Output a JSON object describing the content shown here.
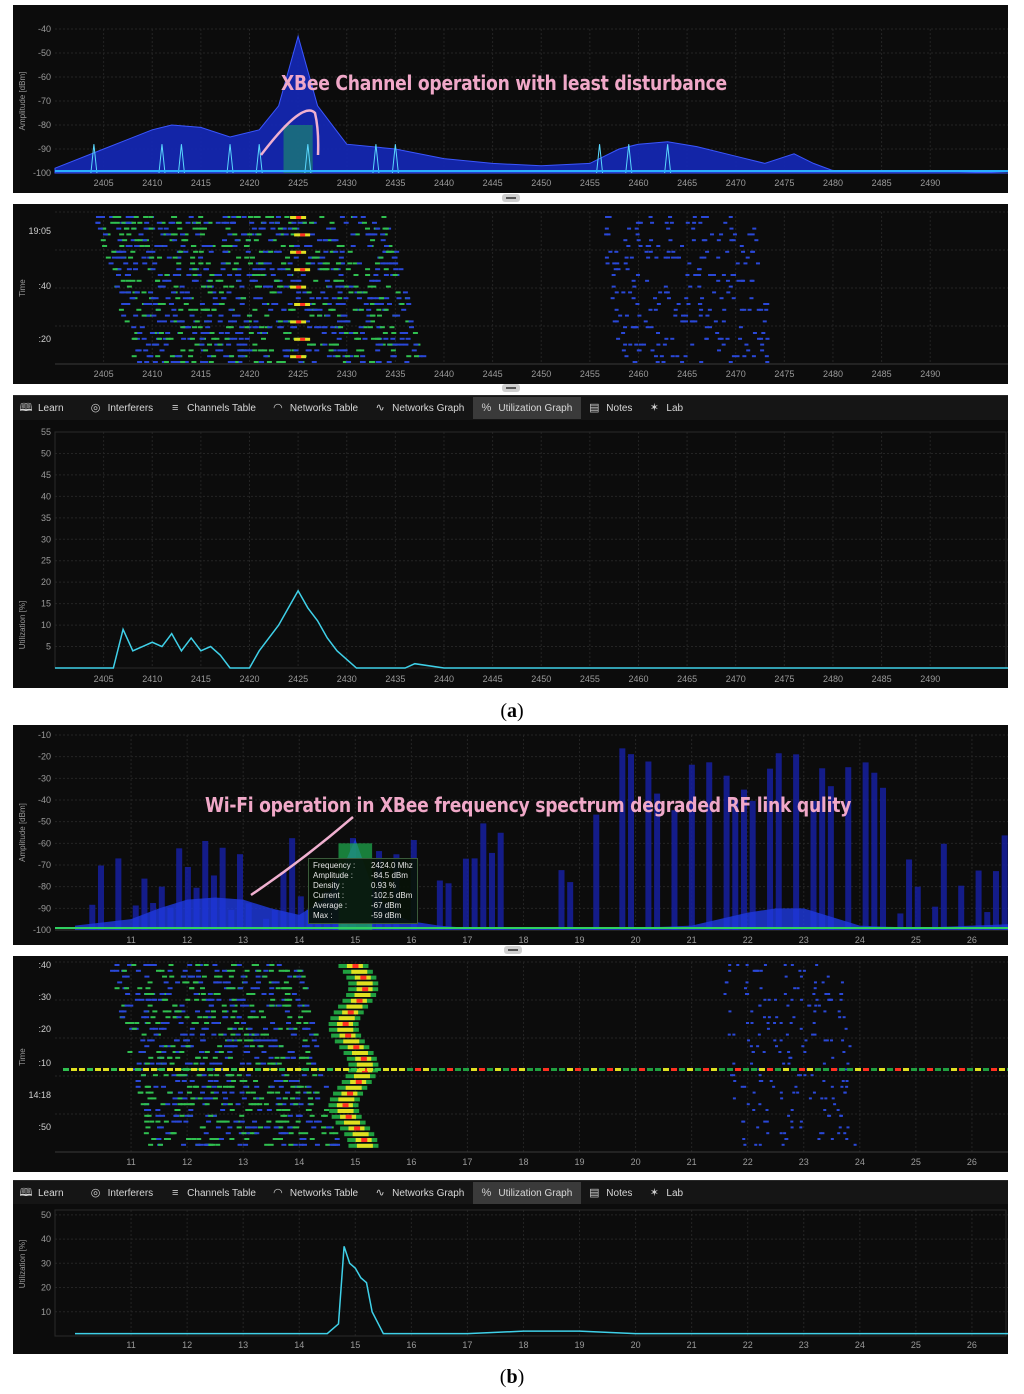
{
  "panel_a": {
    "annotation": "XBee Channel operation with least disturbance",
    "spectrum": {
      "ylabel": "Amplitude [dBm]",
      "yticks": [
        "-40",
        "-50",
        "-60",
        "-70",
        "-80",
        "-90",
        "-100"
      ],
      "xticks": [
        "2405",
        "2410",
        "2415",
        "2420",
        "2425",
        "2430",
        "2435",
        "2440",
        "2445",
        "2450",
        "2455",
        "2460",
        "2465",
        "2470",
        "2475",
        "2480",
        "2485",
        "2490"
      ]
    },
    "waterfall": {
      "ylabel": "Time",
      "yticks": [
        "19:05",
        ":40",
        ":20"
      ],
      "xticks": [
        "2405",
        "2410",
        "2415",
        "2420",
        "2425",
        "2430",
        "2435",
        "2440",
        "2445",
        "2450",
        "2455",
        "2460",
        "2465",
        "2470",
        "2475",
        "2480",
        "2485",
        "2490"
      ]
    },
    "toolbar": [
      "Learn",
      "Interferers",
      "Channels Table",
      "Networks Table",
      "Networks Graph",
      "Utilization Graph",
      "Notes",
      "Lab"
    ],
    "utilization": {
      "ylabel": "Utilization [%]",
      "yticks": [
        "55",
        "50",
        "45",
        "40",
        "35",
        "30",
        "25",
        "20",
        "15",
        "10",
        "5"
      ],
      "xticks": [
        "2405",
        "2410",
        "2415",
        "2420",
        "2425",
        "2430",
        "2435",
        "2440",
        "2445",
        "2450",
        "2455",
        "2460",
        "2465",
        "2470",
        "2475",
        "2480",
        "2485",
        "2490"
      ]
    },
    "caption_letter": "a"
  },
  "panel_b": {
    "annotation": "Wi-Fi operation in XBee frequency spectrum degraded RF link qulity",
    "spectrum": {
      "ylabel": "Amplitude [dBm]",
      "yticks": [
        "-10",
        "-20",
        "-30",
        "-40",
        "-50",
        "-60",
        "-70",
        "-80",
        "-90",
        "-100"
      ],
      "xticks": [
        "11",
        "12",
        "13",
        "14",
        "15",
        "16",
        "17",
        "18",
        "19",
        "20",
        "21",
        "22",
        "23",
        "24",
        "25",
        "26"
      ]
    },
    "readout": {
      "rows": [
        {
          "k": "Frequency :",
          "v": "2424.0 Mhz"
        },
        {
          "k": "Amplitude :",
          "v": "-84.5 dBm"
        },
        {
          "k": "Density :",
          "v": "0.93 %"
        },
        {
          "k": "Current :",
          "v": "-102.5 dBm"
        },
        {
          "k": "Average :",
          "v": "-67 dBm"
        },
        {
          "k": "Max :",
          "v": "-59 dBm"
        }
      ]
    },
    "waterfall": {
      "ylabel": "Time",
      "yticks": [
        ":40",
        ":30",
        ":20",
        ":10",
        "14:18",
        ":50"
      ],
      "xticks": [
        "11",
        "12",
        "13",
        "14",
        "15",
        "16",
        "17",
        "18",
        "19",
        "20",
        "21",
        "22",
        "23",
        "24",
        "25",
        "26"
      ]
    },
    "toolbar": [
      "Learn",
      "Interferers",
      "Channels Table",
      "Networks Table",
      "Networks Graph",
      "Utilization Graph",
      "Notes",
      "Lab"
    ],
    "utilization": {
      "ylabel": "Utilization [%]",
      "yticks": [
        "50",
        "40",
        "30",
        "20",
        "10"
      ],
      "xticks": [
        "11",
        "12",
        "13",
        "14",
        "15",
        "16",
        "17",
        "18",
        "19",
        "20",
        "21",
        "22",
        "23",
        "24",
        "25",
        "26"
      ]
    },
    "caption_letter": "b"
  },
  "toolbar_icons": [
    "book-icon",
    "interferers-icon",
    "channels-table-icon",
    "wifi-icon",
    "graph-icon",
    "percent-icon",
    "notes-icon",
    "lab-icon"
  ],
  "colors": {
    "trace": "#3fd0e8",
    "spectrum_blue": "#1a2ad0",
    "background": "#0c0c0c",
    "annotation": "#f0a8c8"
  },
  "chart_data": [
    {
      "type": "area",
      "title": "",
      "xlabel": "",
      "ylabel": "Amplitude [dBm]",
      "xlim": [
        2400,
        2498
      ],
      "ylim": [
        -100,
        -35
      ],
      "series": [
        {
          "x": [
            2400,
            2405,
            2410,
            2412,
            2415,
            2418,
            2421,
            2423,
            2425,
            2427,
            2430,
            2435,
            2440,
            2445,
            2450,
            2455,
            2458,
            2460,
            2463,
            2466,
            2470,
            2473,
            2476,
            2478,
            2480,
            2490,
            2498
          ],
          "values": [
            -98,
            -90,
            -82,
            -80,
            -81,
            -85,
            -82,
            -72,
            -43,
            -72,
            -88,
            -90,
            -94,
            -96,
            -97,
            -96,
            -90,
            -88,
            -87,
            -89,
            -93,
            -96,
            -92,
            -96,
            -99,
            -99,
            -100
          ]
        }
      ]
    },
    {
      "type": "line",
      "title": "",
      "xlabel": "",
      "ylabel": "Utilization [%]",
      "xlim": [
        2400,
        2498
      ],
      "ylim": [
        0,
        56
      ],
      "series": [
        {
          "x": [
            2400,
            2406,
            2407,
            2408,
            2409,
            2410,
            2411,
            2412,
            2413,
            2414,
            2415,
            2416,
            2417,
            2418,
            2419,
            2420,
            2421,
            2422,
            2423,
            2424,
            2425,
            2426,
            2427,
            2428,
            2429,
            2430,
            2431,
            2436,
            2437,
            2440,
            2498
          ],
          "values": [
            0,
            0,
            9,
            4,
            5,
            6,
            5,
            8,
            4,
            7,
            4,
            5,
            3,
            0,
            0,
            0,
            4,
            7,
            10,
            14,
            18,
            14,
            11,
            7,
            4,
            2,
            0,
            0,
            1,
            0,
            0
          ]
        }
      ]
    },
    {
      "type": "area",
      "title": "",
      "xlabel": "",
      "ylabel": "Amplitude [dBm]",
      "xlim": [
        10,
        27
      ],
      "ylim": [
        -100,
        -8
      ],
      "series": [
        {
          "x": [
            10,
            11,
            11.5,
            12,
            12.5,
            13,
            13.5,
            14,
            14.5,
            14.8,
            15,
            15.3,
            15.6,
            16,
            16.5,
            17,
            18,
            19,
            20,
            21,
            21.5,
            22,
            22.5,
            23,
            23.5,
            24,
            25,
            26,
            27
          ],
          "values": [
            -98,
            -95,
            -90,
            -86,
            -85,
            -86,
            -90,
            -93,
            -85,
            -70,
            -58,
            -80,
            -92,
            -96,
            -98,
            -99,
            -99,
            -99,
            -99,
            -98,
            -95,
            -92,
            -90,
            -90,
            -94,
            -98,
            -99,
            -98,
            -97
          ]
        }
      ]
    },
    {
      "type": "line",
      "title": "",
      "xlabel": "",
      "ylabel": "Utilization [%]",
      "xlim": [
        10,
        27
      ],
      "ylim": [
        0,
        52
      ],
      "series": [
        {
          "x": [
            10,
            11,
            12,
            13,
            14,
            14.5,
            14.7,
            14.8,
            14.9,
            15,
            15.1,
            15.2,
            15.3,
            15.5,
            16,
            17,
            18,
            19,
            20,
            21,
            22,
            23,
            24,
            25,
            26,
            27
          ],
          "values": [
            1,
            1,
            1,
            1,
            1,
            1,
            5,
            37,
            30,
            28,
            24,
            22,
            10,
            1,
            1,
            1,
            2,
            2,
            1,
            1,
            1,
            1,
            1,
            1,
            1,
            1
          ]
        }
      ]
    }
  ]
}
